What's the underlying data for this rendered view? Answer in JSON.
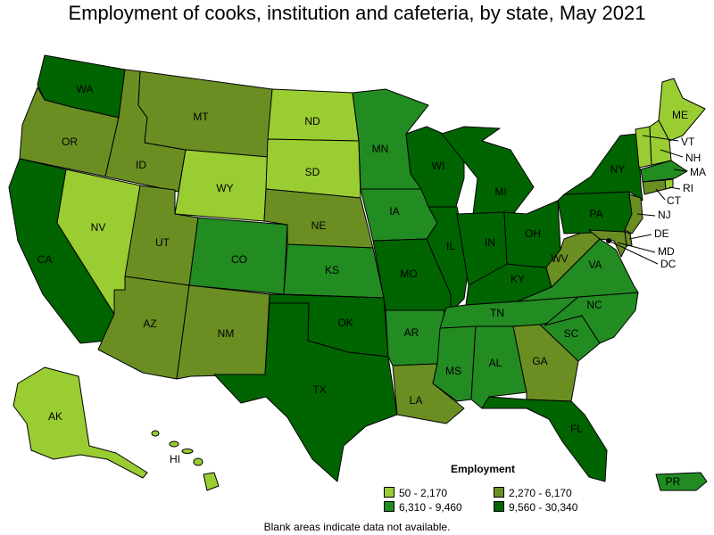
{
  "title": "Employment of cooks, institution and cafeteria, by state, May 2021",
  "legend": {
    "title": "Employment",
    "bins": [
      {
        "label": "50 - 2,170",
        "color": "#9acd32"
      },
      {
        "label": "2,270 - 6,170",
        "color": "#6b8e23"
      },
      {
        "label": "6,310 - 9,460",
        "color": "#228b22"
      },
      {
        "label": "9,560 - 30,340",
        "color": "#006400"
      }
    ]
  },
  "footnote": "Blank areas indicate data not available.",
  "states": {
    "WA": 3,
    "OR": 1,
    "CA": 3,
    "NV": 0,
    "ID": 1,
    "MT": 1,
    "WY": 0,
    "UT": 1,
    "AZ": 1,
    "CO": 2,
    "NM": 1,
    "ND": 0,
    "SD": 0,
    "NE": 1,
    "KS": 2,
    "OK": 3,
    "TX": 3,
    "MN": 2,
    "IA": 2,
    "MO": 3,
    "AR": 2,
    "LA": 1,
    "WI": 3,
    "IL": 3,
    "MI": 3,
    "IN": 3,
    "OH": 3,
    "KY": 3,
    "TN": 2,
    "MS": 2,
    "AL": 2,
    "GA": 1,
    "FL": 3,
    "SC": 2,
    "NC": 2,
    "VA": 2,
    "WV": 1,
    "PA": 3,
    "NY": 3,
    "ME": 0,
    "NH": 0,
    "VT": 0,
    "MA": 2,
    "RI": 0,
    "CT": 1,
    "NJ": 1,
    "DE": 1,
    "MD": 1,
    "DC": 3,
    "AK": 0,
    "HI": 0,
    "PR": 2
  },
  "callouts": [
    "VT",
    "NH",
    "MA",
    "RI",
    "CT",
    "NJ",
    "DE",
    "MD",
    "DC"
  ]
}
